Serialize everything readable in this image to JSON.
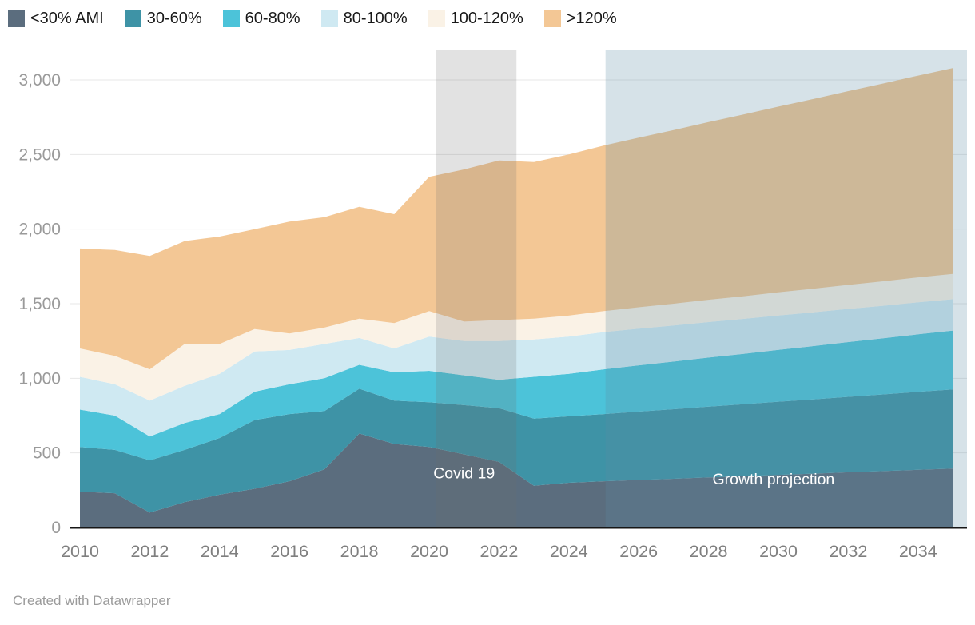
{
  "legend": {
    "items": [
      {
        "label": "<30% AMI",
        "color": "#5b6d7e"
      },
      {
        "label": "30-60%",
        "color": "#3e93a6"
      },
      {
        "label": "60-80%",
        "color": "#4cc3d9"
      },
      {
        "label": "80-100%",
        "color": "#cfe9f2"
      },
      {
        "label": "100-120%",
        "color": "#faf2e6"
      },
      {
        "label": ">120%",
        "color": "#f3c795"
      }
    ]
  },
  "chart_data": {
    "type": "area",
    "stacked": true,
    "title": "",
    "xlabel": "",
    "ylabel": "",
    "grid": true,
    "legend_position": "top",
    "ylim": [
      0,
      3200
    ],
    "x": [
      2010,
      2011,
      2012,
      2013,
      2014,
      2015,
      2016,
      2017,
      2018,
      2019,
      2020,
      2021,
      2022,
      2023,
      2024,
      2025,
      2026,
      2027,
      2028,
      2029,
      2030,
      2031,
      2032,
      2033,
      2034,
      2035
    ],
    "series": [
      {
        "name": "<30% AMI",
        "color": "#5b6d7e",
        "values": [
          240,
          230,
          100,
          170,
          220,
          260,
          310,
          390,
          630,
          560,
          540,
          490,
          440,
          280,
          300,
          310,
          319,
          327,
          336,
          344,
          353,
          361,
          370,
          378,
          387,
          395
        ]
      },
      {
        "name": "30-60%",
        "color": "#3e93a6",
        "values": [
          300,
          290,
          350,
          350,
          380,
          460,
          450,
          390,
          300,
          290,
          300,
          330,
          360,
          450,
          445,
          450,
          458,
          466,
          474,
          482,
          490,
          498,
          506,
          514,
          522,
          530
        ]
      },
      {
        "name": "60-80%",
        "color": "#4cc3d9",
        "values": [
          250,
          230,
          160,
          180,
          160,
          190,
          200,
          220,
          160,
          190,
          210,
          200,
          190,
          280,
          285,
          300,
          310,
          319,
          329,
          338,
          348,
          357,
          367,
          376,
          386,
          395
        ]
      },
      {
        "name": "80-100%",
        "color": "#cfe9f2",
        "values": [
          220,
          210,
          240,
          250,
          270,
          270,
          230,
          230,
          180,
          160,
          230,
          230,
          260,
          250,
          250,
          250,
          246,
          242,
          238,
          234,
          230,
          226,
          222,
          218,
          214,
          210
        ]
      },
      {
        "name": "100-120%",
        "color": "#faf2e6",
        "values": [
          190,
          190,
          210,
          280,
          200,
          150,
          110,
          110,
          130,
          170,
          170,
          130,
          140,
          140,
          140,
          140,
          143,
          146,
          149,
          152,
          155,
          158,
          161,
          164,
          167,
          170
        ]
      },
      {
        "name": ">120%",
        "color": "#f3c795",
        "values": [
          670,
          710,
          760,
          690,
          720,
          670,
          750,
          740,
          750,
          730,
          900,
          1020,
          1070,
          1050,
          1080,
          1110,
          1137,
          1164,
          1191,
          1218,
          1245,
          1272,
          1299,
          1326,
          1353,
          1380
        ]
      }
    ],
    "yticks": [
      0,
      500,
      1000,
      1500,
      2000,
      2500,
      3000
    ],
    "ytick_labels": [
      "0",
      "500",
      "1,000",
      "1,500",
      "2,000",
      "2,500",
      "3,000"
    ],
    "xticks": [
      2010,
      2012,
      2014,
      2016,
      2018,
      2020,
      2022,
      2024,
      2026,
      2028,
      2030,
      2032,
      2034
    ],
    "highlight_ranges": [
      {
        "name": "covid-band",
        "from": 2020.2,
        "to": 2022.5,
        "color": "#707070",
        "opacity": 0.2
      },
      {
        "name": "projection-band",
        "from": 2025.05,
        "to": "end",
        "color": "#5c8ca4",
        "opacity": 0.25
      }
    ],
    "annotations": [
      {
        "text": "Covid 19",
        "x": 2021,
        "y": 330,
        "color": "#ffffff"
      },
      {
        "text": "Growth projection",
        "x": 2029.86,
        "y": 290,
        "color": "#ffffff"
      }
    ]
  },
  "footer": {
    "attribution": "Created with Datawrapper"
  }
}
